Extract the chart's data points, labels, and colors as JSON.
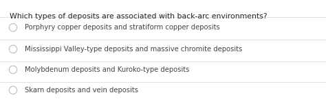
{
  "question": "Which types of deposits are associated with back-arc environments?",
  "options": [
    "Porphyry copper deposits and stratiform copper deposits",
    "Mississippi Valley-type deposits and massive chromite deposits",
    "Molybdenum deposits and Kuroko-type deposits",
    "Skarn deposits and vein deposits"
  ],
  "background_color": "#ffffff",
  "question_color": "#222222",
  "option_color": "#444444",
  "divider_color": "#dddddd",
  "radio_edge_color": "#bbbbbb",
  "question_fontsize": 7.8,
  "option_fontsize": 7.2,
  "fig_width": 4.74,
  "fig_height": 1.58,
  "dpi": 100
}
